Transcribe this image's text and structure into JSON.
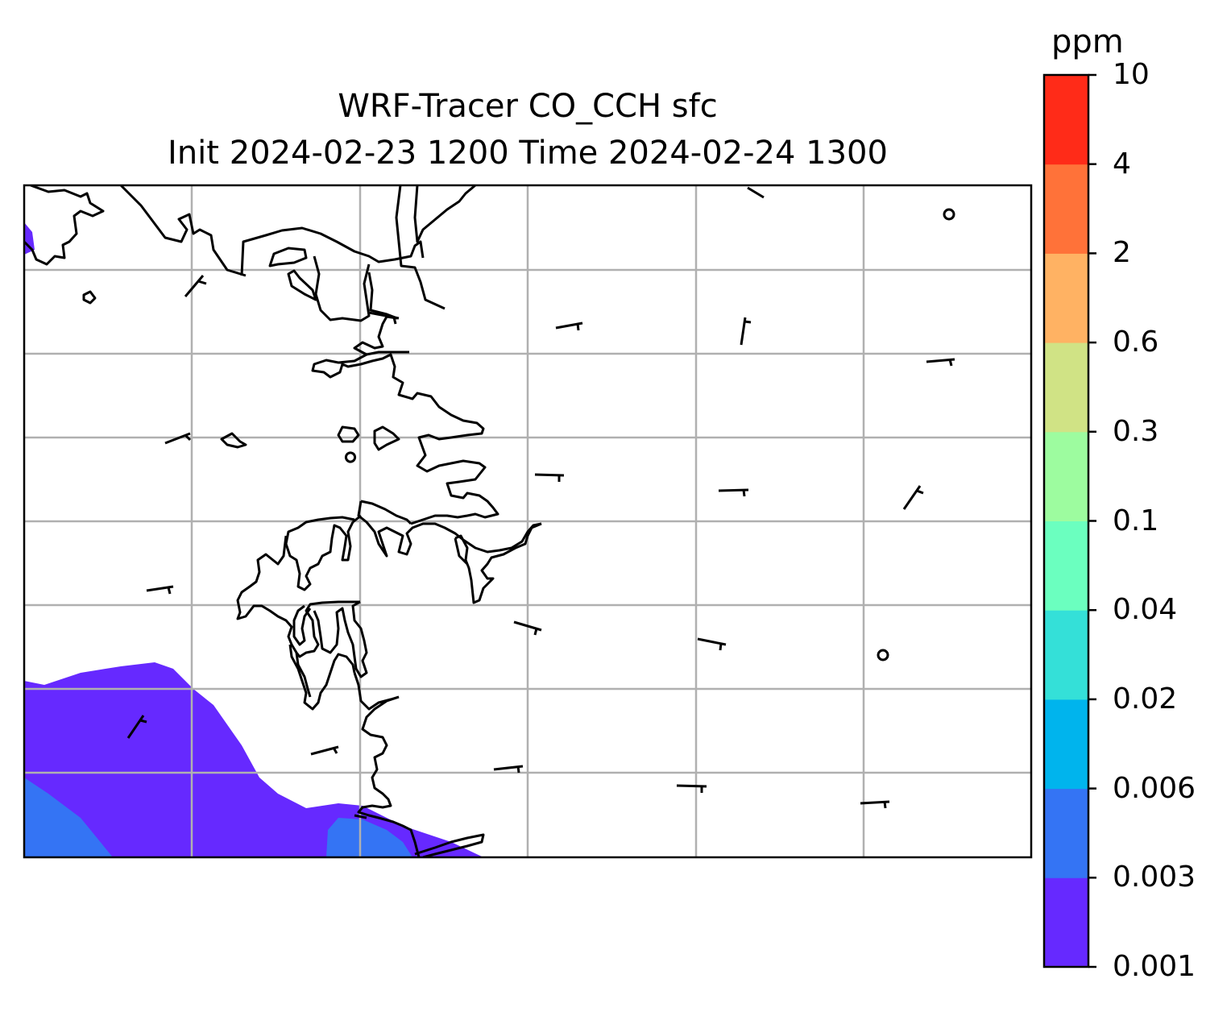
{
  "title": {
    "line1": "WRF-Tracer CO_CCH sfc",
    "line2": "Init 2024-02-23 1200 Time 2024-02-24 1300"
  },
  "colorbar": {
    "unit": "ppm",
    "levels": [
      "0.001",
      "0.003",
      "0.006",
      "0.02",
      "0.04",
      "0.1",
      "0.3",
      "0.6",
      "2",
      "4",
      "10"
    ],
    "colors": [
      "#6629ff",
      "#3474f4",
      "#00b4ed",
      "#34e0d8",
      "#6bffbf",
      "#9dfc9f",
      "#d0e385",
      "#ffb263",
      "#ff7239",
      "#ff2b18"
    ]
  },
  "map": {
    "field_fill_colors": {
      "lowest_band": "#6629ff",
      "second_band": "#3474f4"
    },
    "coastline_color": "#000000",
    "gridline_color": "#b0b0b0",
    "wind_barbs": "black"
  }
}
